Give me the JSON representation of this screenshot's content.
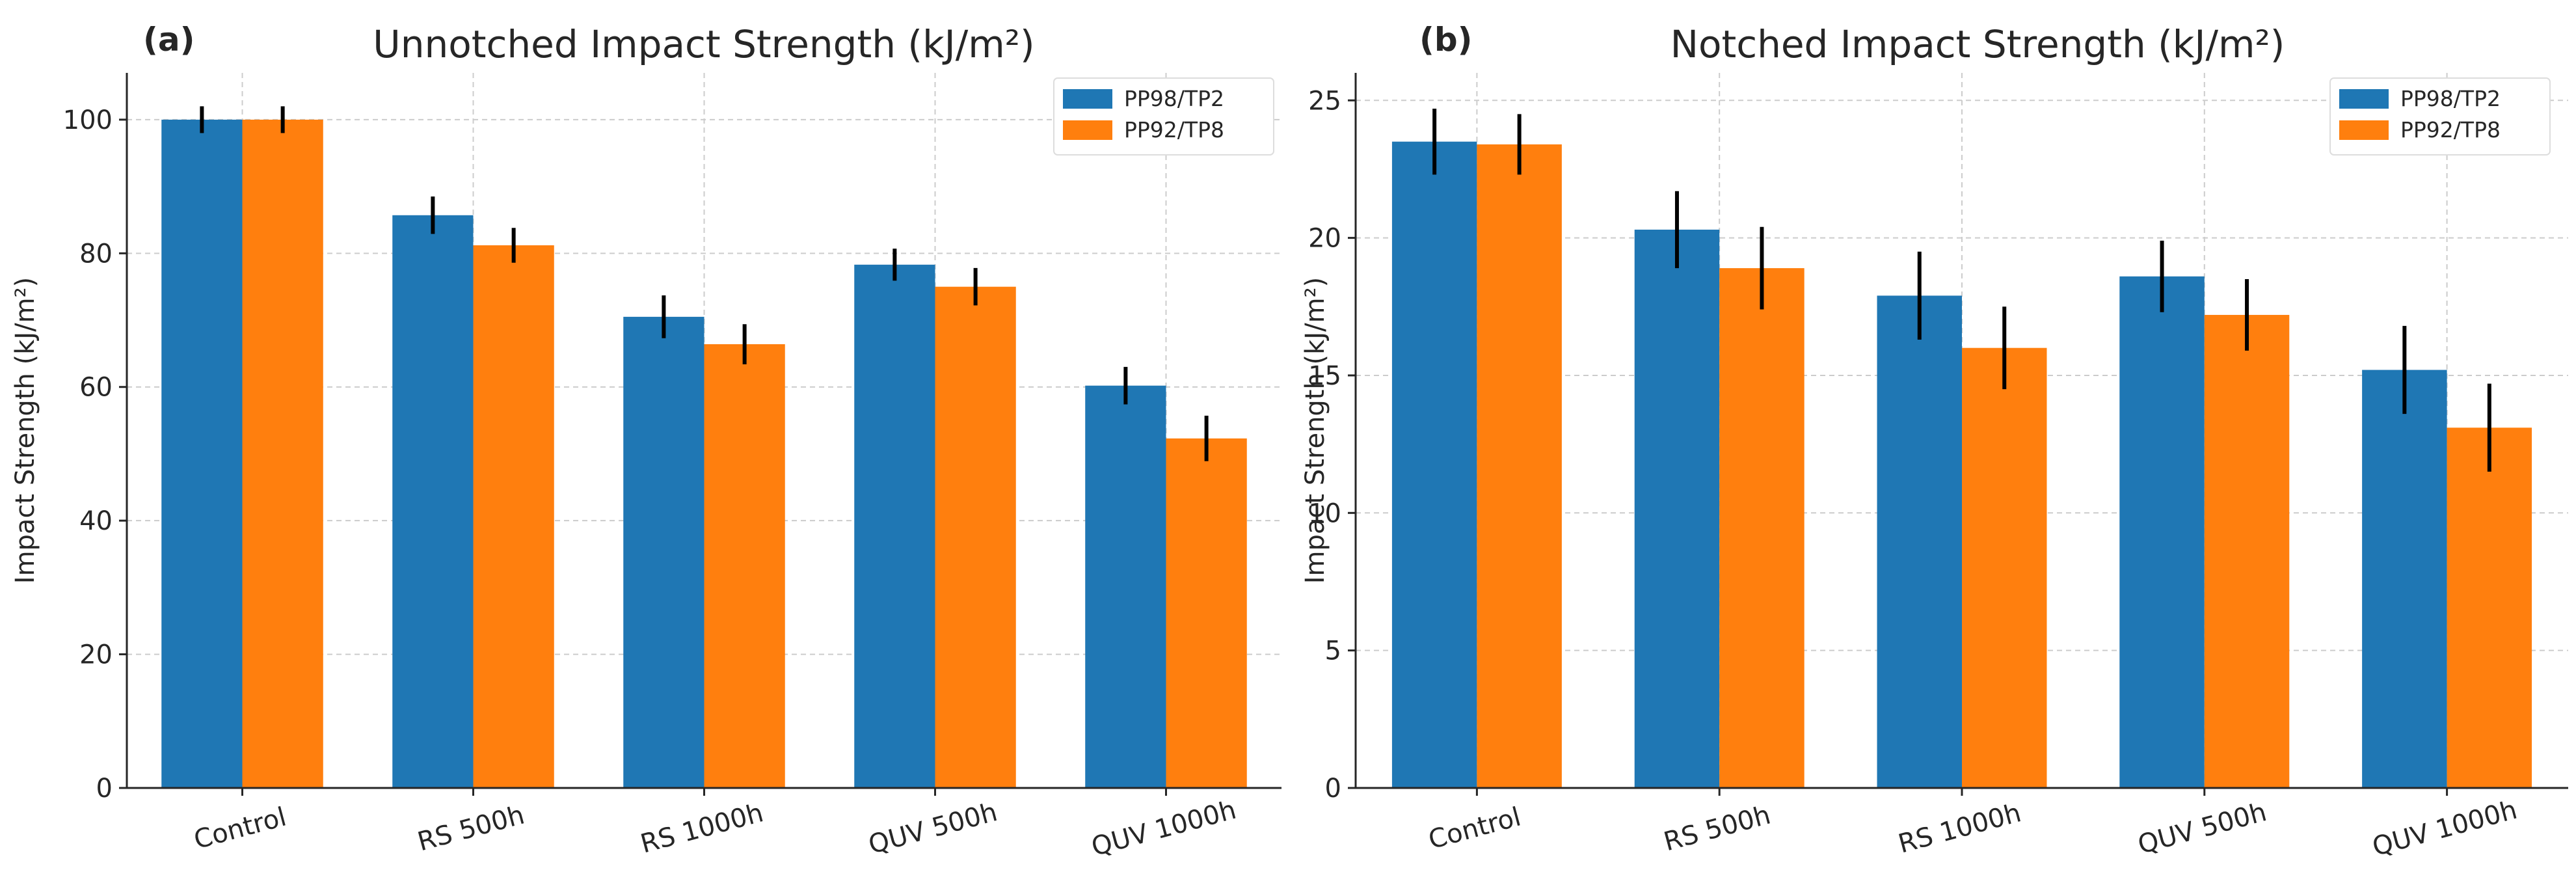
{
  "colors": {
    "series1": "#1f77b4",
    "series2": "#ff7f0e"
  },
  "chart_data": [
    {
      "type": "bar",
      "panel_label": "(a)",
      "title": "Unnotched Impact Strength (kJ/m²)",
      "xlabel": "",
      "ylabel": "Impact Strength (kJ/m²)",
      "ylim": [
        0,
        107
      ],
      "yticks": [
        0,
        20,
        40,
        60,
        80,
        100
      ],
      "grid": true,
      "legend_position": "top-right",
      "categories": [
        "Control",
        "RS 500h",
        "RS 1000h",
        "QUV 500h",
        "QUV 1000h"
      ],
      "series": [
        {
          "name": "PP98/TP2",
          "values": [
            100,
            85.7,
            70.5,
            78.3,
            60.2
          ],
          "errors": [
            2.0,
            2.8,
            3.2,
            2.4,
            2.8
          ]
        },
        {
          "name": "PP92/TP8",
          "values": [
            100,
            81.2,
            66.4,
            75.0,
            52.3
          ],
          "errors": [
            2.0,
            2.6,
            3.0,
            2.8,
            3.4
          ]
        }
      ]
    },
    {
      "type": "bar",
      "panel_label": "(b)",
      "title": "Notched Impact Strength (kJ/m²)",
      "xlabel": "",
      "ylabel": "Impact Strength (kJ/m²)",
      "ylim": [
        0,
        26
      ],
      "yticks": [
        0,
        5,
        10,
        15,
        20,
        25
      ],
      "grid": true,
      "legend_position": "top-right",
      "categories": [
        "Control",
        "RS 500h",
        "RS 1000h",
        "QUV 500h",
        "QUV 1000h"
      ],
      "series": [
        {
          "name": "PP98/TP2",
          "values": [
            23.5,
            20.3,
            17.9,
            18.6,
            15.2
          ],
          "errors": [
            1.2,
            1.4,
            1.6,
            1.3,
            1.6
          ]
        },
        {
          "name": "PP92/TP8",
          "values": [
            23.4,
            18.9,
            16.0,
            17.2,
            13.1
          ],
          "errors": [
            1.1,
            1.5,
            1.5,
            1.3,
            1.6
          ]
        }
      ]
    }
  ]
}
